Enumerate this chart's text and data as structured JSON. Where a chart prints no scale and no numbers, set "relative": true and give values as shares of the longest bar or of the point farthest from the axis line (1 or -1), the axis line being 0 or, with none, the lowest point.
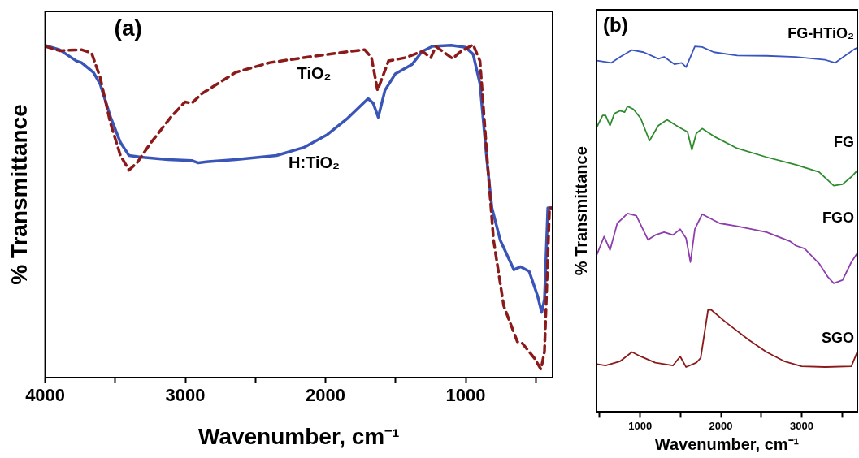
{
  "chart_data": [
    {
      "type": "line",
      "title": "(a)",
      "xlabel": "Wavenumber, cm⁻¹",
      "ylabel": "% Transmittance",
      "relative": true,
      "marker": "none",
      "grid": false,
      "legend": false,
      "xlim": [
        4000,
        380
      ],
      "xticks": [
        4000,
        {
          "value": 3500,
          "label": null
        },
        3000,
        {
          "value": 2500,
          "label": null
        },
        2000,
        {
          "value": 1500,
          "label": null
        },
        1000,
        {
          "value": 500,
          "label": null
        }
      ],
      "series": [
        {
          "name": "TiO₂",
          "color": "#8b1a1a",
          "line_style": "dashed",
          "x": [
            4000,
            3898,
            3741,
            3669,
            3608,
            3535,
            3463,
            3402,
            3342,
            3245,
            3100,
            3003,
            2955,
            2882,
            2640,
            2398,
            2156,
            1914,
            1721,
            1672,
            1629,
            1551,
            1430,
            1310,
            1249,
            1213,
            1093,
            1044,
            947,
            898,
            838,
            801,
            729,
            632,
            596,
            511,
            463,
            438,
            402,
            383
          ],
          "values": [
            0.995,
            0.982,
            0.985,
            0.975,
            0.902,
            0.765,
            0.667,
            0.623,
            0.647,
            0.706,
            0.784,
            0.828,
            0.824,
            0.853,
            0.917,
            0.946,
            0.961,
            0.975,
            0.985,
            0.961,
            0.863,
            0.951,
            0.961,
            0.98,
            0.961,
            0.995,
            0.958,
            0.977,
            1.0,
            0.951,
            0.608,
            0.412,
            0.216,
            0.108,
            0.103,
            0.059,
            0.025,
            0.078,
            0.51,
            0.51
          ]
        },
        {
          "name": "H:TiO₂",
          "color": "#3a55b8",
          "line_style": "solid",
          "x": [
            4000,
            3898,
            3777,
            3741,
            3656,
            3608,
            3535,
            3463,
            3402,
            3318,
            3124,
            2955,
            2907,
            2834,
            2640,
            2350,
            2156,
            1987,
            1842,
            1697,
            1660,
            1624,
            1576,
            1503,
            1382,
            1310,
            1237,
            1104,
            1000,
            947,
            898,
            850,
            813,
            753,
            656,
            608,
            547,
            487,
            458,
            438,
            414,
            383
          ],
          "values": [
            0.998,
            0.985,
            0.951,
            0.946,
            0.917,
            0.882,
            0.784,
            0.706,
            0.667,
            0.662,
            0.655,
            0.652,
            0.645,
            0.649,
            0.655,
            0.667,
            0.691,
            0.73,
            0.779,
            0.838,
            0.824,
            0.782,
            0.863,
            0.912,
            0.941,
            0.98,
            0.995,
            0.998,
            0.992,
            0.971,
            0.882,
            0.657,
            0.51,
            0.412,
            0.324,
            0.333,
            0.319,
            0.245,
            0.196,
            0.235,
            0.51,
            0.51
          ]
        }
      ]
    },
    {
      "type": "line",
      "title": "(b)",
      "xlabel": "Wavenumber, cm⁻¹",
      "ylabel": "% Transmittance",
      "relative": true,
      "marker": "none",
      "grid": false,
      "legend": false,
      "xlim": [
        460,
        3690
      ],
      "xticks": [
        {
          "value": 500,
          "label": null
        },
        1000,
        {
          "value": 1500,
          "label": null
        },
        2000,
        {
          "value": 2500,
          "label": null
        },
        3000,
        {
          "value": 3500,
          "label": null
        }
      ],
      "series": [
        {
          "name": "FG-HTiO₂",
          "color": "#3a55c0",
          "x": [
            464,
            645,
            754,
            899,
            1043,
            1225,
            1297,
            1424,
            1514,
            1569,
            1623,
            1678,
            1768,
            1913,
            2203,
            2565,
            2928,
            3290,
            3417,
            3543,
            3652,
            3688
          ],
          "values": [
            0.961,
            0.955,
            0.971,
            0.99,
            0.984,
            0.966,
            0.971,
            0.951,
            0.955,
            0.943,
            0.971,
            1.0,
            0.998,
            0.984,
            0.975,
            0.974,
            0.971,
            0.963,
            0.955,
            0.975,
            0.992,
            0.996
          ]
        },
        {
          "name": "FG",
          "color": "#2e8b2e",
          "x": [
            464,
            536,
            572,
            627,
            681,
            754,
            808,
            844,
            917,
            1007,
            1116,
            1225,
            1333,
            1478,
            1587,
            1641,
            1696,
            1768,
            1913,
            2203,
            2565,
            2928,
            3217,
            3398,
            3507,
            3616,
            3688
          ],
          "values": [
            0.779,
            0.811,
            0.811,
            0.783,
            0.816,
            0.824,
            0.82,
            0.836,
            0.828,
            0.803,
            0.742,
            0.783,
            0.799,
            0.779,
            0.766,
            0.717,
            0.762,
            0.775,
            0.754,
            0.721,
            0.697,
            0.676,
            0.656,
            0.619,
            0.623,
            0.643,
            0.66
          ]
        },
        {
          "name": "FGO",
          "color": "#8e3fad",
          "x": [
            464,
            554,
            627,
            717,
            844,
            953,
            1098,
            1188,
            1297,
            1406,
            1496,
            1569,
            1623,
            1678,
            1768,
            1986,
            2203,
            2565,
            2855,
            2928,
            3036,
            3217,
            3326,
            3398,
            3507,
            3616,
            3688
          ],
          "values": [
            0.43,
            0.48,
            0.443,
            0.516,
            0.543,
            0.537,
            0.471,
            0.484,
            0.492,
            0.484,
            0.5,
            0.475,
            0.41,
            0.5,
            0.541,
            0.516,
            0.508,
            0.492,
            0.467,
            0.455,
            0.447,
            0.406,
            0.369,
            0.352,
            0.361,
            0.41,
            0.434
          ]
        },
        {
          "name": "SGO",
          "color": "#8b1a1a",
          "x": [
            464,
            572,
            754,
            899,
            1007,
            1188,
            1406,
            1496,
            1569,
            1696,
            1750,
            1841,
            1877,
            2058,
            2348,
            2565,
            2783,
            3000,
            3290,
            3616,
            3688
          ],
          "values": [
            0.131,
            0.127,
            0.139,
            0.164,
            0.152,
            0.135,
            0.127,
            0.152,
            0.123,
            0.135,
            0.148,
            0.279,
            0.28,
            0.246,
            0.197,
            0.164,
            0.139,
            0.125,
            0.123,
            0.125,
            0.164
          ]
        }
      ]
    }
  ]
}
